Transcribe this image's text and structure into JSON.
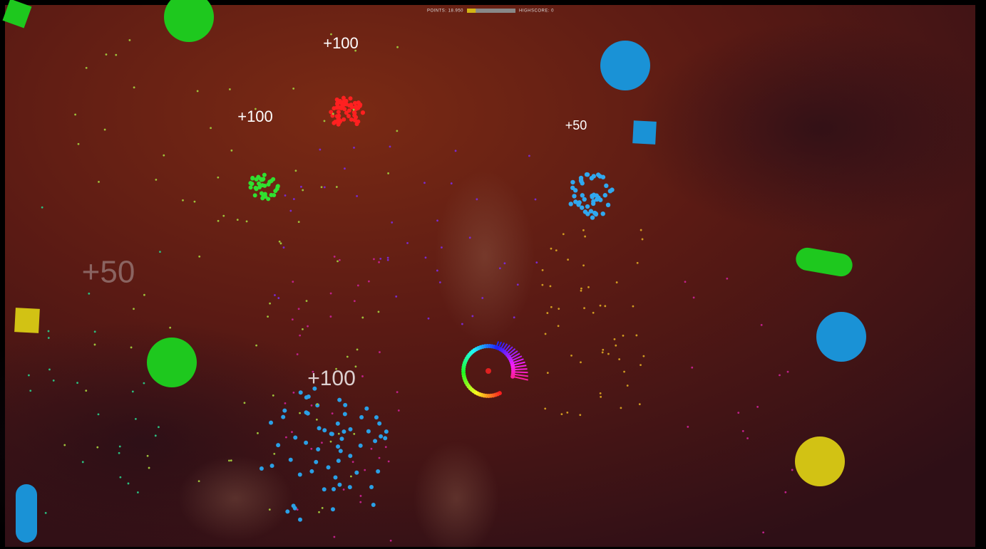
{
  "hud": {
    "points": "POINTS: 18.950",
    "highscore": "HIGHSCORE: 0",
    "progress": 18
  },
  "popups": [
    "+100",
    "+100",
    "+50",
    "+50",
    "+100"
  ]
}
